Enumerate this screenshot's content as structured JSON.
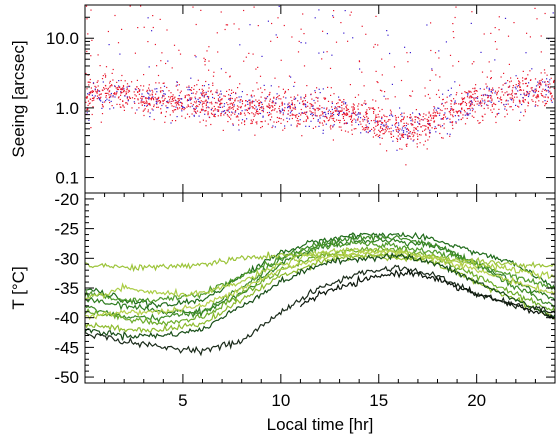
{
  "chart_data": [
    {
      "type": "scatter",
      "ylabel": "Seeing [arcsec]",
      "xlabel": "",
      "yscale": "log",
      "xlim": [
        0,
        24
      ],
      "ylim": [
        0.06,
        30
      ],
      "yticks": [
        {
          "value": 10,
          "label": "10.0"
        },
        {
          "value": 1,
          "label": "1.0"
        },
        {
          "value": 0.1,
          "label": "0.1"
        }
      ],
      "xticks": [
        5,
        10,
        15,
        20
      ],
      "x_tick_labels_shown": false,
      "colors": [
        "#e8142a",
        "#3a1fd0"
      ],
      "median_curve": {
        "x": [
          0,
          1,
          2,
          3,
          4,
          5,
          6,
          7,
          8,
          9,
          10,
          11,
          12,
          13,
          14,
          15,
          16,
          17,
          18,
          19,
          20,
          21,
          22,
          23,
          24
        ],
        "y": [
          1.4,
          1.8,
          1.6,
          1.35,
          1.35,
          1.25,
          1.2,
          1.1,
          1.05,
          1.0,
          1.0,
          0.95,
          0.9,
          0.85,
          0.75,
          0.65,
          0.5,
          0.55,
          0.75,
          0.95,
          1.2,
          1.4,
          1.6,
          1.8,
          2.0
        ]
      }
    },
    {
      "type": "line",
      "ylabel": "T [°C]",
      "xlabel": "Local time [hr]",
      "xlim": [
        0,
        24
      ],
      "ylim": [
        -51,
        -19
      ],
      "yticks": [
        -20,
        -25,
        -30,
        -35,
        -40,
        -45,
        -50
      ],
      "xticks": [
        5,
        10,
        15,
        20
      ],
      "series": [
        {
          "color": "#1f6b1a",
          "x": [
            0,
            2,
            4,
            6,
            8,
            10,
            12,
            14,
            16,
            18,
            20,
            22,
            24
          ],
          "y": [
            -35,
            -37,
            -38,
            -37,
            -33,
            -29,
            -27,
            -26,
            -26,
            -27,
            -29,
            -31,
            -35
          ]
        },
        {
          "color": "#2e7d20",
          "x": [
            0,
            2,
            4,
            6,
            8,
            10,
            12,
            14,
            16,
            18,
            20,
            22,
            24
          ],
          "y": [
            -37,
            -38,
            -39,
            -39,
            -36,
            -31,
            -28,
            -27,
            -27,
            -28,
            -31,
            -34,
            -37
          ]
        },
        {
          "color": "#3c8a26",
          "x": [
            0,
            2,
            4,
            6,
            8,
            10,
            12,
            14,
            16,
            18,
            20,
            22,
            24
          ],
          "y": [
            -38,
            -40,
            -40,
            -39,
            -35,
            -30,
            -27.5,
            -26.5,
            -26.5,
            -28,
            -31,
            -35,
            -38
          ]
        },
        {
          "color": "#4d9a2a",
          "x": [
            0,
            2,
            4,
            6,
            8,
            10,
            12,
            14,
            16,
            18,
            20,
            22,
            24
          ],
          "y": [
            -36,
            -37,
            -37,
            -36,
            -33,
            -30,
            -28,
            -27.5,
            -28,
            -29,
            -31,
            -33,
            -35
          ]
        },
        {
          "color": "#6aab28",
          "x": [
            0,
            2,
            4,
            6,
            8,
            10,
            12,
            14,
            16,
            18,
            20,
            22,
            24
          ],
          "y": [
            -39,
            -40,
            -41,
            -40,
            -36,
            -32,
            -29.5,
            -28.5,
            -28.5,
            -30,
            -33,
            -36,
            -39
          ]
        },
        {
          "color": "#8dbb2c",
          "x": [
            0,
            2,
            4,
            6,
            8,
            10,
            12,
            14,
            16,
            18,
            20,
            22,
            24
          ],
          "y": [
            -41,
            -42,
            -42,
            -41,
            -37,
            -33,
            -30.5,
            -29.5,
            -29.5,
            -31,
            -34,
            -37,
            -40
          ]
        },
        {
          "color": "#9cc43a",
          "x": [
            0,
            2,
            4,
            6,
            8,
            10,
            12,
            14,
            16,
            18,
            20,
            22,
            24
          ],
          "y": [
            -31,
            -31.5,
            -31.5,
            -31,
            -30,
            -29.5,
            -29.5,
            -29.5,
            -30,
            -30,
            -30.5,
            -31,
            -31.5
          ]
        },
        {
          "color": "#aacd44",
          "x": [
            0,
            2,
            4,
            6,
            8,
            10,
            12,
            14,
            16,
            18,
            20,
            22,
            24
          ],
          "y": [
            -37,
            -35,
            -36,
            -36,
            -34,
            -31,
            -29,
            -28.5,
            -29,
            -30,
            -31,
            -32,
            -33
          ]
        },
        {
          "color": "#b5d04a",
          "x": [
            0,
            2,
            4,
            6,
            8,
            10,
            12,
            14,
            16,
            18,
            20,
            22,
            24
          ],
          "y": [
            -40,
            -39,
            -39,
            -38,
            -35,
            -32,
            -30,
            -29,
            -29,
            -30,
            -32,
            -34,
            -36
          ]
        },
        {
          "color": "#174d17",
          "x": [
            0,
            2,
            4,
            6,
            8,
            10,
            12,
            14,
            16,
            18,
            20,
            22,
            24
          ],
          "y": [
            -42,
            -43,
            -43,
            -42,
            -38,
            -34,
            -31,
            -30,
            -29.5,
            -31,
            -34,
            -37,
            -40
          ]
        },
        {
          "color": "#1a2a1a",
          "x": [
            0,
            2,
            4,
            6,
            8,
            10,
            12,
            14,
            16,
            18,
            20,
            22,
            24
          ],
          "y": [
            -42.5,
            -44,
            -45,
            -45.5,
            -44,
            -39,
            -35,
            -32.5,
            -31.5,
            -33,
            -36,
            -38,
            -39
          ]
        },
        {
          "color": "#0a140a",
          "x": [
            11,
            12,
            13,
            14,
            15,
            16,
            17,
            18,
            19,
            20,
            21,
            22,
            23,
            24
          ],
          "y": [
            -38,
            -36,
            -35,
            -34,
            -33,
            -32.5,
            -32.5,
            -33.5,
            -35,
            -36,
            -37,
            -38,
            -39,
            -40
          ]
        }
      ]
    }
  ]
}
